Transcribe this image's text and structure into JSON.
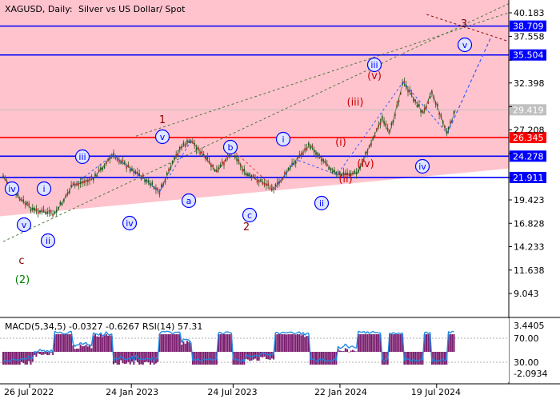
{
  "header": {
    "symbol": "XAGUSD, Daily:",
    "description": "Silver vs US Dollar/ Spot"
  },
  "price_axis": {
    "ticks": [
      40.183,
      37.558,
      34.933,
      32.398,
      29.773,
      27.208,
      24.583,
      21.911,
      19.423,
      16.828,
      14.233,
      11.638,
      9.043
    ],
    "tick_labels": [
      "40.183",
      "37.558",
      "",
      "32.398",
      "",
      "27.208",
      "",
      "",
      "19.423",
      "16.828",
      "14.233",
      "11.638",
      "9.043"
    ]
  },
  "levels": [
    {
      "value": 38.709,
      "label": "38.709",
      "color": "#0000ff",
      "label_bg": "#0000ff"
    },
    {
      "value": 35.504,
      "label": "35.504",
      "color": "#0000ff",
      "label_bg": "#0000ff"
    },
    {
      "value": 29.419,
      "label": "29.419",
      "color": "#c0c0c0",
      "label_bg": "#c0c0c0"
    },
    {
      "value": 26.345,
      "label": "26.345",
      "color": "#ff0000",
      "label_bg": "#ff0000"
    },
    {
      "value": 24.278,
      "label": "24.278",
      "color": "#0000ff",
      "label_bg": "#0000ff"
    },
    {
      "value": 21.911,
      "label": "21.911",
      "color": "#0000ff",
      "label_bg": "#0000ff"
    }
  ],
  "date_axis": {
    "labels": [
      "26 Jul 2022",
      "24 Jan 2023",
      "24 Jul 2023",
      "22 Jan 2024",
      "19 Jul 2024"
    ]
  },
  "indicator": {
    "title": "MACD(5,34,5) -0.0327 -0.6267 RSI(14) 57.31",
    "right_labels": [
      "3.4405",
      "70.00",
      "30.00",
      "-2.0934"
    ]
  },
  "wave_labels": [
    {
      "text": "iv",
      "style": "circle",
      "color": "#0000ff"
    },
    {
      "text": "v",
      "style": "circle",
      "color": "#0000ff"
    },
    {
      "text": "c",
      "style": "plain",
      "color": "#8b0000"
    },
    {
      "text": "(2)",
      "style": "plain",
      "color": "#008000"
    },
    {
      "text": "i",
      "style": "circle",
      "color": "#0000ff"
    },
    {
      "text": "ii",
      "style": "circle",
      "color": "#0000ff"
    },
    {
      "text": "iii",
      "style": "circle",
      "color": "#0000ff"
    },
    {
      "text": "iv",
      "style": "circle",
      "color": "#0000ff"
    },
    {
      "text": "v",
      "style": "circle",
      "color": "#0000ff"
    },
    {
      "text": "1",
      "style": "plain",
      "color": "#8b0000"
    },
    {
      "text": "a",
      "style": "circle",
      "color": "#0000ff"
    },
    {
      "text": "b",
      "style": "circle",
      "color": "#0000ff"
    },
    {
      "text": "c",
      "style": "circle",
      "color": "#0000ff"
    },
    {
      "text": "2",
      "style": "plain",
      "color": "#8b0000"
    },
    {
      "text": "i",
      "style": "circle",
      "color": "#0000ff"
    },
    {
      "text": "ii",
      "style": "circle",
      "color": "#0000ff"
    },
    {
      "text": "(i)",
      "style": "plain",
      "color": "#cc0000"
    },
    {
      "text": "(ii)",
      "style": "plain",
      "color": "#cc0000"
    },
    {
      "text": "(iii)",
      "style": "plain",
      "color": "#cc0000"
    },
    {
      "text": "(iv)",
      "style": "plain",
      "color": "#cc0000"
    },
    {
      "text": "(v)",
      "style": "plain",
      "color": "#cc0000"
    },
    {
      "text": "iii",
      "style": "circle",
      "color": "#0000ff"
    },
    {
      "text": "iv",
      "style": "circle",
      "color": "#0000ff"
    },
    {
      "text": "3",
      "style": "plain",
      "color": "#8b0000"
    },
    {
      "text": "v",
      "style": "circle",
      "color": "#0000ff"
    }
  ],
  "chart_data": {
    "type": "line",
    "title": "XAGUSD, Daily: Silver vs US Dollar/ Spot",
    "x_labels": [
      "26 Jul 2022",
      "24 Jan 2023",
      "24 Jul 2023",
      "22 Jan 2024",
      "19 Jul 2024"
    ],
    "ylim": [
      9.0,
      40.7
    ],
    "series": [
      {
        "color": "#2e7d32",
        "x": [
          "2022-06-01",
          "2022-07-01",
          "2022-07-26",
          "2022-09-01",
          "2022-10-04",
          "2022-11-10",
          "2022-12-15",
          "2023-02-05",
          "2023-03-09",
          "2023-04-15",
          "2023-05-05",
          "2023-06-20",
          "2023-07-18",
          "2023-08-10",
          "2023-10-02",
          "2023-11-10",
          "2023-12-04",
          "2024-01-22",
          "2024-02-28",
          "2024-04-12",
          "2024-04-25",
          "2024-05-20",
          "2024-06-25",
          "2024-07-10",
          "2024-08-07",
          "2024-08-22"
        ],
        "y": [
          22.0,
          19.5,
          18.3,
          17.8,
          21.0,
          21.8,
          24.4,
          22.0,
          20.3,
          25.2,
          26.0,
          22.5,
          25.0,
          22.3,
          20.7,
          23.9,
          25.5,
          22.2,
          22.4,
          28.5,
          26.7,
          32.5,
          29.0,
          31.5,
          26.8,
          29.4
        ]
      }
    ],
    "wave_projection": {
      "x": [
        "2024-08-07",
        "2024-10-25"
      ],
      "y": [
        26.8,
        37.5
      ]
    },
    "indicator": {
      "name": "MACD(5,34,5) RSI(14)",
      "macd": -0.0327,
      "signal": -0.6267,
      "rsi": 57.31,
      "levels": [
        70,
        30
      ]
    },
    "grid": false,
    "legend": "none"
  }
}
